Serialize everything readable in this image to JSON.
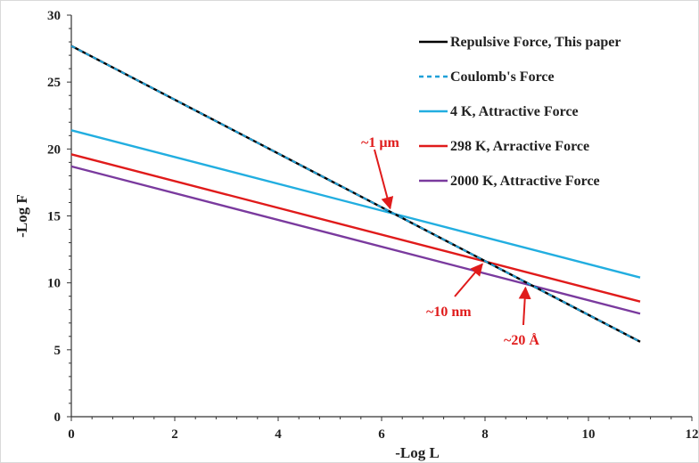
{
  "chart_data": {
    "type": "line",
    "xlabel": "-Log L",
    "ylabel": "-Log F",
    "xlim": [
      0,
      12
    ],
    "ylim": [
      0,
      30
    ],
    "x_ticks": [
      "0",
      "2",
      "4",
      "6",
      "8",
      "10",
      "12"
    ],
    "y_ticks": [
      "0",
      "5",
      "10",
      "15",
      "20",
      "25",
      "30"
    ],
    "grid": false,
    "legend_position": "top-right",
    "series": [
      {
        "name": "Repulsive Force, This paper",
        "color": "#000000",
        "dash": "solid",
        "x": [
          0,
          11
        ],
        "y": [
          27.7,
          5.6
        ]
      },
      {
        "name": "Coulomb's Force",
        "color": "#1fa0d8",
        "dash": "dashed",
        "x": [
          0,
          11
        ],
        "y": [
          27.7,
          5.6
        ]
      },
      {
        "name": "4 K, Attractive Force",
        "color": "#22aee0",
        "dash": "solid",
        "x": [
          0,
          11
        ],
        "y": [
          21.4,
          10.4
        ]
      },
      {
        "name": "298 K, Arractive Force",
        "color": "#e01b1b",
        "dash": "solid",
        "x": [
          0,
          11
        ],
        "y": [
          19.6,
          8.6
        ]
      },
      {
        "name": "2000 K, Attractive Force",
        "color": "#7a3a9e",
        "dash": "solid",
        "x": [
          0,
          11
        ],
        "y": [
          18.7,
          7.7
        ]
      }
    ],
    "annotations": [
      {
        "text": "~1 µm",
        "point": [
          6.2,
          15.3
        ],
        "color": "#e01b1b"
      },
      {
        "text": "~10 nm",
        "point": [
          8.0,
          11.6
        ],
        "color": "#e01b1b"
      },
      {
        "text": "~20 Å",
        "point": [
          8.8,
          9.9
        ],
        "color": "#e01b1b"
      }
    ]
  }
}
